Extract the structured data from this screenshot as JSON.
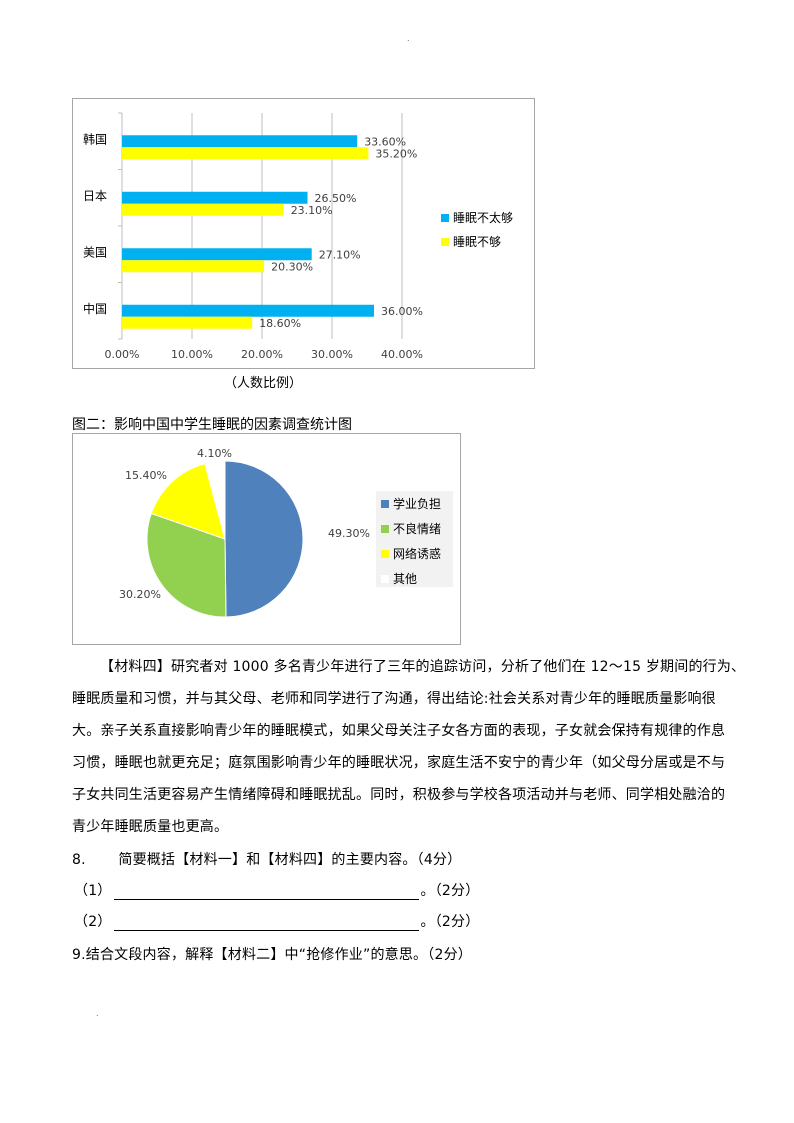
{
  "page_marks": {
    "top_dot": ".",
    "bottom_dot": "."
  },
  "chart_data": [
    {
      "type": "bar",
      "orientation": "horizontal",
      "categories": [
        "韩国",
        "日本",
        "美国",
        "中国"
      ],
      "series": [
        {
          "name": "睡眠不太够",
          "color": "#00b0f0",
          "values": [
            33.6,
            26.5,
            27.1,
            36.0
          ],
          "labels": [
            "33.60%",
            "26.50%",
            "27.10%",
            "36.00%"
          ]
        },
        {
          "name": "睡眠不够",
          "color": "#ffff00",
          "values": [
            35.2,
            23.1,
            20.3,
            18.6
          ],
          "labels": [
            "35.20%",
            "23.10%",
            "20.30%",
            "18.60%"
          ]
        }
      ],
      "xlim": [
        0,
        40
      ],
      "xticks": [
        "0.00%",
        "10.00%",
        "20.00%",
        "30.00%",
        "40.00%"
      ],
      "xlabel": "（人数比例）",
      "grid": "vertical",
      "legend": "right"
    },
    {
      "type": "pie",
      "title": "图二：影响中国中学生睡眠的因素调查统计图",
      "categories": [
        "学业负担",
        "不良情绪",
        "网络诱惑",
        "其他"
      ],
      "values": [
        49.3,
        30.2,
        15.4,
        4.1
      ],
      "labels": [
        "49.30%",
        "30.20%",
        "15.40%",
        "4.10%"
      ],
      "colors": [
        "#4f81bd",
        "#92d050",
        "#ffff00",
        "#ffffff"
      ],
      "legend": "right"
    }
  ],
  "material4": {
    "lines": [
      "【材料四】研究者对 1000 多名青少年进行了三年的追踪访问，分析了他们在 12～15 岁期间的行为、",
      "睡眠质量和习惯，并与其父母、老师和同学进行了沟通，得出结论:社会关系对青少年的睡眠质量影响很",
      "大。亲子关系直接影响青少年的睡眠模式，如果父母关注子女各方面的表现，子女就会保持有规律的作息",
      "习惯，睡眠也就更充足；庭氛围影响青少年的睡眠状况，家庭生活不安宁的青少年（如父母分居或是不与",
      "子女共同生活更容易产生情绪障碍和睡眠扰乱。同时，积极参与学校各项活动并与老师、同学相处融洽的",
      "青少年睡眠质量也更高。"
    ]
  },
  "questions": {
    "q8_num": "8.",
    "q8_text": "简要概括【材料一】和【材料四】的主要内容。（4分）",
    "q8_1_label": "（1）",
    "q8_1_score": "。（2分）",
    "q8_2_label": "（2）",
    "q8_2_score": "。（2分）",
    "q9_text": "9.结合文段内容，解释【材料二】中“抢修作业”的意思。（2分）"
  }
}
